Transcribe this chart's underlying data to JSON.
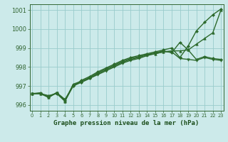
{
  "line1": {
    "x": [
      0,
      1,
      2,
      3,
      4,
      5,
      6,
      7,
      8,
      9,
      10,
      11,
      12,
      13,
      14,
      15,
      16,
      17,
      18,
      19,
      20,
      21,
      22,
      23
    ],
    "y": [
      996.6,
      996.6,
      996.5,
      996.6,
      996.2,
      997.0,
      997.3,
      997.5,
      997.75,
      997.95,
      998.15,
      998.35,
      998.5,
      998.6,
      998.7,
      998.8,
      998.9,
      999.0,
      998.5,
      999.1,
      999.9,
      1000.35,
      1000.75,
      1001.05
    ],
    "color": "#2d6a2d",
    "marker": "D",
    "markersize": 2.0,
    "linewidth": 1.0
  },
  "line2": {
    "x": [
      0,
      1,
      2,
      3,
      4,
      5,
      6,
      7,
      8,
      9,
      10,
      11,
      12,
      13,
      14,
      15,
      16,
      17,
      18,
      19,
      20,
      21,
      22,
      23
    ],
    "y": [
      996.6,
      996.65,
      996.4,
      996.65,
      996.25,
      997.05,
      997.2,
      997.4,
      997.65,
      997.85,
      998.05,
      998.25,
      998.4,
      998.5,
      998.65,
      998.75,
      998.85,
      998.75,
      999.3,
      998.9,
      998.4,
      998.55,
      998.45,
      998.4
    ],
    "color": "#2d6a2d",
    "marker": "D",
    "markersize": 2.0,
    "linewidth": 1.0
  },
  "line3": {
    "x": [
      0,
      1,
      2,
      3,
      4,
      5,
      6,
      7,
      8,
      9,
      10,
      11,
      12,
      13,
      14,
      15,
      16,
      17,
      18,
      19,
      20,
      21,
      22,
      23
    ],
    "y": [
      996.6,
      996.6,
      996.4,
      996.65,
      996.2,
      997.1,
      997.25,
      997.45,
      997.7,
      997.9,
      998.1,
      998.3,
      998.45,
      998.55,
      998.65,
      998.7,
      998.8,
      998.85,
      998.85,
      998.9,
      999.2,
      999.5,
      999.8,
      1001.0
    ],
    "color": "#2d6a2d",
    "marker": "^",
    "markersize": 2.5,
    "linewidth": 1.0
  },
  "line4": {
    "x": [
      0,
      1,
      2,
      3,
      4,
      5,
      6,
      7,
      8,
      9,
      10,
      11,
      12,
      13,
      14,
      15,
      16,
      17,
      18,
      19,
      20,
      21,
      22,
      23
    ],
    "y": [
      996.6,
      996.6,
      996.45,
      996.65,
      996.3,
      997.0,
      997.2,
      997.4,
      997.6,
      997.8,
      998.0,
      998.2,
      998.35,
      998.45,
      998.6,
      998.7,
      998.8,
      998.8,
      998.45,
      998.4,
      998.35,
      998.5,
      998.4,
      998.35
    ],
    "color": "#2d6a2d",
    "marker": "v",
    "markersize": 2.5,
    "linewidth": 1.0
  },
  "ylim": [
    995.7,
    1001.3
  ],
  "yticks": [
    996,
    997,
    998,
    999,
    1000,
    1001
  ],
  "xlim": [
    -0.3,
    23.3
  ],
  "xticks": [
    0,
    1,
    2,
    3,
    4,
    5,
    6,
    7,
    8,
    9,
    10,
    11,
    12,
    13,
    14,
    15,
    16,
    17,
    18,
    19,
    20,
    21,
    22,
    23
  ],
  "xlabel": "Graphe pression niveau de la mer (hPa)",
  "bg_color": "#cceaea",
  "grid_color": "#99cccc",
  "line_color": "#336633",
  "tick_label_color": "#336633",
  "xlabel_color": "#1a4d1a",
  "xlabel_fontsize": 6.5,
  "ytick_fontsize": 6.0,
  "xtick_fontsize": 4.8
}
